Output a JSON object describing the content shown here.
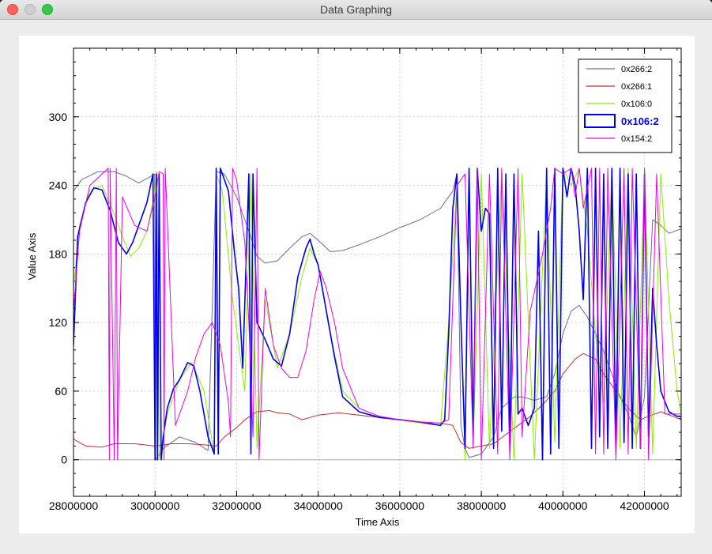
{
  "window": {
    "title": "Data Graphing"
  },
  "chart_data": {
    "type": "line",
    "xlabel": "Time Axis",
    "ylabel": "Value Axis",
    "xlim": [
      28000000,
      42900000
    ],
    "ylim": [
      -32,
      360
    ],
    "xticks": [
      28000000,
      30000000,
      32000000,
      34000000,
      36000000,
      38000000,
      40000000,
      42000000
    ],
    "yticks": [
      0,
      60,
      120,
      180,
      240,
      300
    ],
    "grid": true,
    "legend_position": "top-right",
    "series": [
      {
        "name": "0x266:2",
        "color": "#6a6a9e",
        "width": 1,
        "bold": false,
        "x": [
          28000000,
          28200000,
          28600000,
          29000000,
          29300000,
          29600000,
          29900000,
          29990000,
          30010000,
          30200000,
          30600000,
          31000000,
          31300000,
          31500000,
          31700000,
          32000000,
          32300000,
          32500000,
          32700000,
          33000000,
          33300000,
          33600000,
          33800000,
          34000000,
          34300000,
          34600000,
          35000000,
          35500000,
          36000000,
          36500000,
          37000000,
          37300000,
          37400000,
          37500000,
          37600000,
          37700000,
          37800000,
          38000000,
          38300000,
          38500000,
          38800000,
          39000000,
          39300000,
          39600000,
          39800000,
          40000000,
          40200000,
          40400000,
          40600000,
          40800000,
          41000000,
          41200000,
          41400000,
          41600000,
          41800000,
          42000000,
          42200000,
          42400000,
          42600000,
          42900000
        ],
        "y": [
          235,
          245,
          252,
          252,
          248,
          242,
          248,
          250,
          0,
          10,
          20,
          15,
          8,
          252,
          250,
          230,
          200,
          178,
          172,
          174,
          185,
          195,
          198,
          192,
          182,
          183,
          188,
          195,
          203,
          210,
          220,
          235,
          250,
          30,
          10,
          2,
          3,
          5,
          20,
          45,
          55,
          55,
          52,
          55,
          75,
          110,
          130,
          135,
          125,
          110,
          95,
          75,
          55,
          40,
          20,
          55,
          210,
          205,
          198,
          202
        ]
      },
      {
        "name": "0x266:1",
        "color": "#c03030",
        "width": 1,
        "bold": false,
        "x": [
          28000000,
          28300000,
          28700000,
          29000000,
          29500000,
          30000000,
          30400000,
          30800000,
          31200000,
          31500000,
          31700000,
          32000000,
          32200000,
          32500000,
          32800000,
          33000000,
          33300000,
          33600000,
          34000000,
          34500000,
          35000000,
          35500000,
          36000000,
          36500000,
          37000000,
          37300000,
          37500000,
          37700000,
          38000000,
          38300000,
          38600000,
          38900000,
          39200000,
          39500000,
          39800000,
          40000000,
          40300000,
          40500000,
          40800000,
          41000000,
          41300000,
          41600000,
          41900000,
          42100000,
          42400000,
          42700000,
          42900000
        ],
        "y": [
          18,
          12,
          11,
          14,
          14,
          12,
          14,
          14,
          13,
          12,
          20,
          28,
          35,
          42,
          43,
          41,
          40,
          35,
          39,
          41,
          39,
          37,
          35,
          33,
          32,
          30,
          15,
          10,
          12,
          14,
          22,
          30,
          38,
          48,
          60,
          75,
          88,
          93,
          88,
          75,
          60,
          45,
          35,
          38,
          42,
          38,
          35
        ]
      },
      {
        "name": "0x106:0",
        "color": "#88ee00",
        "width": 1,
        "bold": false,
        "x": [
          28000000,
          28150000,
          28400000,
          28700000,
          29000000,
          29200000,
          29400000,
          29600000,
          29800000,
          30000000,
          30050000,
          30100000,
          30300000,
          30600000,
          30900000,
          31200000,
          31450000,
          31500000,
          31650000,
          31900000,
          32200000,
          32350000,
          32500000,
          32700000,
          33000000,
          33300000,
          33600000,
          33800000,
          34000000,
          34300000,
          34600000,
          35000000,
          35500000,
          36000000,
          36500000,
          37000000,
          37200000,
          37400000,
          37600000,
          37700000,
          37800000,
          38000000,
          38200000,
          38500000,
          38800000,
          39000000,
          39300000,
          39600000,
          39800000,
          40000000,
          40200000,
          40400000,
          40600000,
          40800000,
          41000000,
          41200000,
          41400000,
          41600000,
          41800000,
          42000000,
          42200000,
          42400000,
          42600000,
          42800000,
          42900000
        ],
        "y": [
          150,
          205,
          235,
          240,
          215,
          195,
          178,
          185,
          200,
          235,
          252,
          0,
          40,
          70,
          85,
          60,
          5,
          250,
          235,
          140,
          60,
          250,
          10,
          140,
          80,
          110,
          160,
          185,
          170,
          110,
          60,
          45,
          38,
          35,
          32,
          30,
          120,
          240,
          0,
          250,
          10,
          250,
          10,
          255,
          0,
          250,
          0,
          250,
          15,
          255,
          240,
          255,
          200,
          110,
          50,
          255,
          10,
          255,
          10,
          255,
          5,
          250,
          140,
          60,
          40
        ]
      },
      {
        "name": "0x106:2",
        "color": "#0000ee",
        "width": 1.6,
        "bold": true,
        "x": [
          28000000,
          28100000,
          28300000,
          28500000,
          28700000,
          28900000,
          29100000,
          29300000,
          29450000,
          29600000,
          29800000,
          29950000,
          30000000,
          30030000,
          30060000,
          30100000,
          30150000,
          30200000,
          30300000,
          30450000,
          30600000,
          30800000,
          30950000,
          31100000,
          31300000,
          31450000,
          31500000,
          31550000,
          31600000,
          31800000,
          31950000,
          32050000,
          32150000,
          32300000,
          32350000,
          32400000,
          32500000,
          32700000,
          32900000,
          33100000,
          33300000,
          33500000,
          33700000,
          33800000,
          33900000,
          34000000,
          34200000,
          34400000,
          34600000,
          35000000,
          35500000,
          36000000,
          36500000,
          37000000,
          37100000,
          37200000,
          37300000,
          37400000,
          37500000,
          37600000,
          37700000,
          37800000,
          37900000,
          38000000,
          38100000,
          38200000,
          38300000,
          38400000,
          38500000,
          38600000,
          38700000,
          38800000,
          38900000,
          39000000,
          39150000,
          39300000,
          39400000,
          39500000,
          39600000,
          39700000,
          39800000,
          39900000,
          40000000,
          40100000,
          40200000,
          40300000,
          40400000,
          40500000,
          40600000,
          40700000,
          40800000,
          40900000,
          41000000,
          41100000,
          41200000,
          41300000,
          41400000,
          41500000,
          41600000,
          41700000,
          41800000,
          41900000,
          42000000,
          42100000,
          42200000,
          42300000,
          42400000,
          42600000,
          42800000,
          42900000
        ],
        "y": [
          100,
          195,
          225,
          238,
          236,
          218,
          190,
          180,
          190,
          205,
          225,
          250,
          0,
          250,
          0,
          250,
          0,
          20,
          45,
          62,
          70,
          85,
          82,
          60,
          20,
          5,
          255,
          5,
          255,
          235,
          180,
          150,
          80,
          250,
          5,
          250,
          120,
          105,
          88,
          82,
          110,
          160,
          185,
          193,
          180,
          170,
          130,
          90,
          55,
          42,
          37,
          35,
          33,
          30,
          35,
          110,
          220,
          250,
          120,
          10,
          255,
          20,
          255,
          200,
          220,
          215,
          10,
          255,
          25,
          250,
          10,
          250,
          40,
          45,
          30,
          45,
          200,
          0,
          255,
          5,
          255,
          10,
          255,
          230,
          255,
          240,
          200,
          140,
          255,
          10,
          255,
          20,
          250,
          10,
          255,
          10,
          255,
          15,
          250,
          10,
          250,
          10,
          250,
          20,
          150,
          100,
          60,
          42,
          38,
          38
        ]
      },
      {
        "name": "0x154:2",
        "color": "#ee00ee",
        "width": 1,
        "bold": false,
        "x": [
          28000000,
          28150000,
          28400000,
          28700000,
          28850000,
          28880000,
          28900000,
          29000000,
          29050000,
          29080000,
          29200000,
          29500000,
          29800000,
          30000000,
          30100000,
          30200000,
          30220000,
          30250000,
          30500000,
          30800000,
          31000000,
          31200000,
          31400000,
          31600000,
          31800000,
          31850000,
          31900000,
          32000000,
          32200000,
          32300000,
          32400000,
          32500000,
          32550000,
          32700000,
          32900000,
          33100000,
          33300000,
          33500000,
          33700000,
          33900000,
          34050000,
          34200000,
          34400000,
          34600000,
          35000000,
          35500000,
          36000000,
          36500000,
          37000000,
          37200000,
          37400000,
          37600000,
          37800000,
          37900000,
          38000000,
          38200000,
          38400000,
          38500000,
          38700000,
          38900000,
          39000000,
          39200000,
          39500000,
          39700000,
          39800000,
          40000000,
          40200000,
          40300000,
          40400000,
          40500000,
          40700000,
          40800000,
          40900000,
          41000000,
          41100000,
          41300000,
          41500000,
          41600000,
          41700000,
          41900000,
          42000000,
          42100000,
          42300000,
          42500000,
          42700000,
          42900000
        ],
        "y": [
          130,
          200,
          240,
          250,
          255,
          0,
          255,
          0,
          255,
          0,
          230,
          205,
          200,
          230,
          252,
          250,
          0,
          255,
          30,
          60,
          90,
          110,
          120,
          100,
          50,
          20,
          255,
          245,
          190,
          120,
          20,
          255,
          0,
          150,
          100,
          80,
          72,
          72,
          95,
          140,
          165,
          150,
          120,
          80,
          45,
          38,
          35,
          33,
          32,
          35,
          240,
          250,
          10,
          255,
          0,
          250,
          5,
          255,
          0,
          255,
          20,
          130,
          180,
          220,
          255,
          250,
          255,
          230,
          255,
          220,
          255,
          5,
          255,
          5,
          255,
          0,
          255,
          5,
          255,
          10,
          255,
          0,
          250,
          40,
          40,
          40
        ]
      }
    ]
  }
}
